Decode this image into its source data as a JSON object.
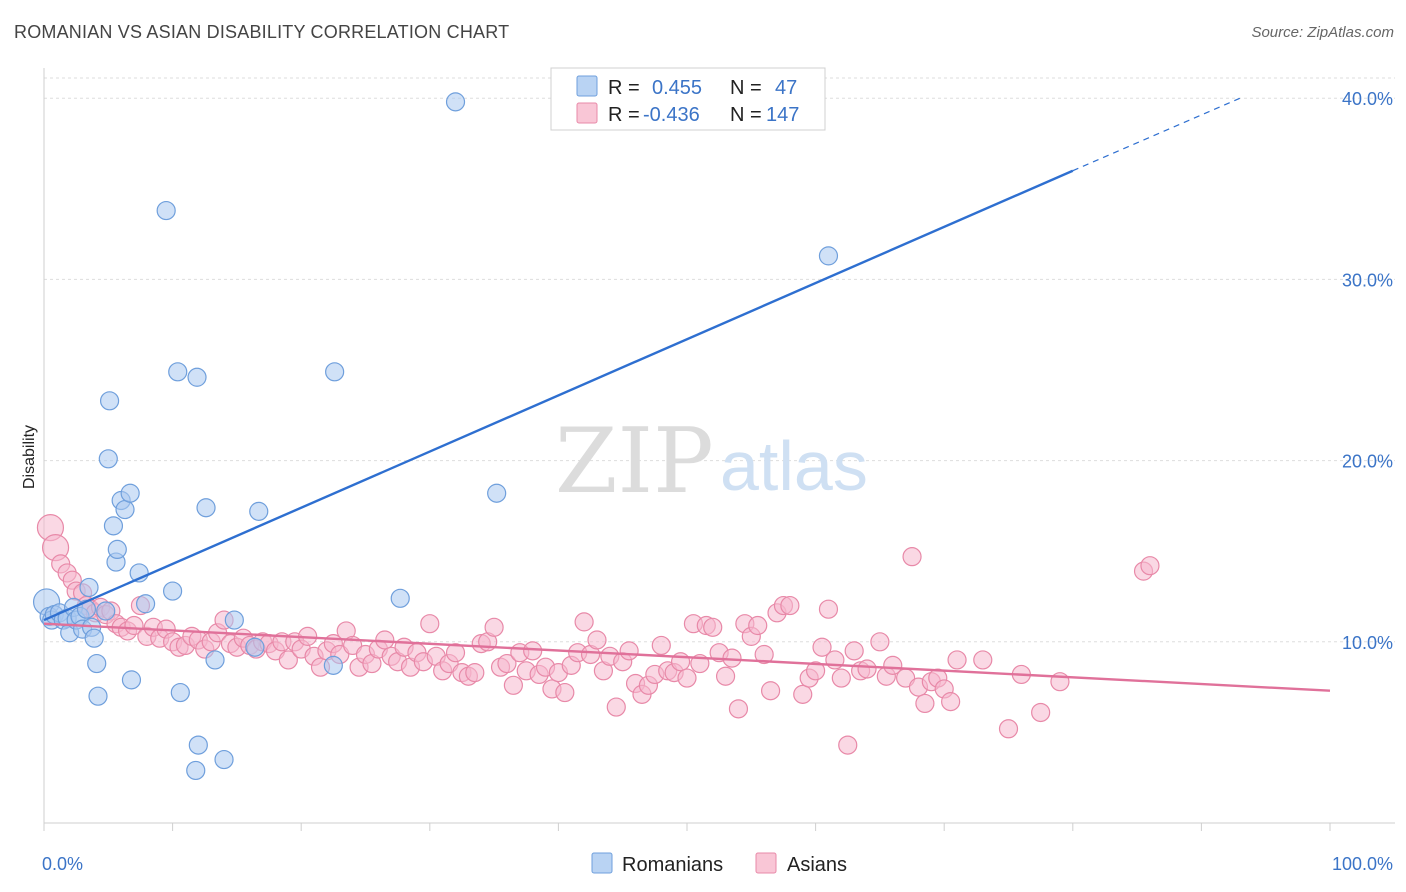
{
  "title": "ROMANIAN VS ASIAN DISABILITY CORRELATION CHART",
  "source": "Source: ZipAtlas.com",
  "watermark": {
    "part1": "ZIP",
    "part2": "atlas"
  },
  "colors": {
    "romanian_fill": "#a9c8f0",
    "romanian_stroke": "#6f9fdc",
    "romanian_line": "#2e6fd0",
    "asian_fill": "#f6b8cd",
    "asian_stroke": "#e889a8",
    "asian_line": "#e0719a",
    "tick_text": "#3b74c7",
    "grid": "#dddddd"
  },
  "legend": {
    "rows": [
      {
        "r_label": "R =",
        "r_value": "0.455",
        "n_label": "N =",
        "n_value": "47"
      },
      {
        "r_label": "R =",
        "r_value": "-0.436",
        "n_label": "N =",
        "n_value": "147"
      }
    ],
    "bottom": [
      "Romanians",
      "Asians"
    ]
  },
  "chart_data": {
    "type": "scatter",
    "title": "ROMANIAN VS ASIAN DISABILITY CORRELATION CHART",
    "ylabel": "Disability",
    "xlabel": "",
    "xlim": [
      0,
      100
    ],
    "ylim": [
      0,
      42
    ],
    "x_tick_labels": [
      "0.0%",
      "100.0%"
    ],
    "y_ticks": [
      10,
      20,
      30,
      40
    ],
    "y_tick_labels": [
      "10.0%",
      "20.0%",
      "30.0%",
      "40.0%"
    ],
    "grid": "horizontal dashed",
    "legend_position": "top-center",
    "series": [
      {
        "name": "Romanians",
        "r": 0.455,
        "n": 47,
        "trend": {
          "x0": 0,
          "y0": 11.2,
          "x1": 80,
          "y1": 36.0,
          "dashed_to": [
            93,
            40.0
          ]
        },
        "points": [
          [
            0.2,
            12.2
          ],
          [
            0.4,
            11.4
          ],
          [
            0.6,
            11.2
          ],
          [
            0.8,
            11.5
          ],
          [
            1.2,
            11.6
          ],
          [
            1.5,
            11.2
          ],
          [
            1.8,
            11.3
          ],
          [
            2.0,
            10.5
          ],
          [
            2.3,
            11.9
          ],
          [
            2.5,
            11.2
          ],
          [
            2.8,
            11.4
          ],
          [
            3.0,
            10.7
          ],
          [
            3.3,
            11.8
          ],
          [
            3.5,
            13.0
          ],
          [
            3.7,
            10.8
          ],
          [
            3.9,
            10.2
          ],
          [
            4.1,
            8.8
          ],
          [
            4.2,
            7.0
          ],
          [
            4.8,
            11.7
          ],
          [
            5.0,
            20.1
          ],
          [
            5.1,
            23.3
          ],
          [
            5.4,
            16.4
          ],
          [
            5.6,
            14.4
          ],
          [
            5.7,
            15.1
          ],
          [
            6.0,
            17.8
          ],
          [
            6.3,
            17.3
          ],
          [
            6.7,
            18.2
          ],
          [
            6.8,
            7.9
          ],
          [
            7.4,
            13.8
          ],
          [
            7.9,
            12.1
          ],
          [
            9.5,
            33.8
          ],
          [
            10.0,
            12.8
          ],
          [
            10.4,
            24.9
          ],
          [
            10.6,
            7.2
          ],
          [
            11.9,
            24.6
          ],
          [
            12.0,
            4.3
          ],
          [
            11.8,
            2.9
          ],
          [
            12.6,
            17.4
          ],
          [
            13.3,
            9.0
          ],
          [
            14.0,
            3.5
          ],
          [
            14.8,
            11.2
          ],
          [
            16.4,
            9.7
          ],
          [
            16.7,
            17.2
          ],
          [
            22.5,
            8.7
          ],
          [
            22.6,
            24.9
          ],
          [
            27.7,
            12.4
          ],
          [
            32.0,
            39.8
          ],
          [
            35.2,
            18.2
          ],
          [
            61.0,
            31.3
          ]
        ]
      },
      {
        "name": "Asians",
        "r": -0.436,
        "n": 147,
        "trend": {
          "x0": 0,
          "y0": 11.0,
          "x1": 100,
          "y1": 7.3
        },
        "points": [
          [
            0.5,
            16.3
          ],
          [
            0.9,
            15.2
          ],
          [
            1.3,
            14.3
          ],
          [
            1.8,
            13.8
          ],
          [
            2.2,
            13.4
          ],
          [
            2.5,
            12.8
          ],
          [
            3.0,
            12.7
          ],
          [
            3.3,
            12.0
          ],
          [
            3.6,
            11.8
          ],
          [
            4.0,
            11.6
          ],
          [
            4.4,
            11.9
          ],
          [
            4.8,
            11.5
          ],
          [
            5.2,
            11.7
          ],
          [
            5.6,
            11.0
          ],
          [
            6.0,
            10.8
          ],
          [
            6.5,
            10.6
          ],
          [
            7.0,
            10.9
          ],
          [
            7.5,
            12.0
          ],
          [
            8.0,
            10.3
          ],
          [
            8.5,
            10.8
          ],
          [
            9.0,
            10.2
          ],
          [
            9.5,
            10.7
          ],
          [
            10.0,
            10.0
          ],
          [
            10.5,
            9.7
          ],
          [
            11.0,
            9.8
          ],
          [
            11.5,
            10.3
          ],
          [
            12.0,
            10.1
          ],
          [
            12.5,
            9.6
          ],
          [
            13.0,
            10.0
          ],
          [
            13.5,
            10.5
          ],
          [
            14.0,
            11.2
          ],
          [
            14.5,
            9.9
          ],
          [
            15.0,
            9.7
          ],
          [
            15.5,
            10.2
          ],
          [
            16.0,
            9.8
          ],
          [
            16.5,
            9.6
          ],
          [
            17.0,
            10.0
          ],
          [
            17.5,
            9.9
          ],
          [
            18.0,
            9.5
          ],
          [
            18.5,
            10.0
          ],
          [
            19.0,
            9.0
          ],
          [
            19.5,
            10.0
          ],
          [
            20.0,
            9.6
          ],
          [
            20.5,
            10.3
          ],
          [
            21.0,
            9.2
          ],
          [
            21.5,
            8.6
          ],
          [
            22.0,
            9.5
          ],
          [
            22.5,
            9.9
          ],
          [
            23.0,
            9.3
          ],
          [
            23.5,
            10.6
          ],
          [
            24.0,
            9.8
          ],
          [
            24.5,
            8.6
          ],
          [
            25.0,
            9.3
          ],
          [
            25.5,
            8.8
          ],
          [
            26.0,
            9.6
          ],
          [
            26.5,
            10.1
          ],
          [
            27.0,
            9.2
          ],
          [
            27.5,
            8.9
          ],
          [
            28.0,
            9.7
          ],
          [
            28.5,
            8.6
          ],
          [
            29.0,
            9.4
          ],
          [
            29.5,
            8.9
          ],
          [
            30.0,
            11.0
          ],
          [
            30.5,
            9.2
          ],
          [
            31.0,
            8.4
          ],
          [
            31.5,
            8.8
          ],
          [
            32.0,
            9.4
          ],
          [
            32.5,
            8.3
          ],
          [
            33.0,
            8.1
          ],
          [
            33.5,
            8.3
          ],
          [
            34.0,
            9.9
          ],
          [
            34.5,
            10.0
          ],
          [
            35.0,
            10.8
          ],
          [
            35.5,
            8.6
          ],
          [
            36.0,
            8.8
          ],
          [
            36.5,
            7.6
          ],
          [
            37.0,
            9.4
          ],
          [
            37.5,
            8.4
          ],
          [
            38.0,
            9.5
          ],
          [
            38.5,
            8.2
          ],
          [
            39.0,
            8.6
          ],
          [
            39.5,
            7.4
          ],
          [
            40.0,
            8.3
          ],
          [
            40.5,
            7.2
          ],
          [
            41.0,
            8.7
          ],
          [
            41.5,
            9.4
          ],
          [
            42.0,
            11.1
          ],
          [
            42.5,
            9.3
          ],
          [
            43.0,
            10.1
          ],
          [
            43.5,
            8.4
          ],
          [
            44.0,
            9.2
          ],
          [
            44.5,
            6.4
          ],
          [
            45.0,
            8.9
          ],
          [
            45.5,
            9.5
          ],
          [
            46.0,
            7.7
          ],
          [
            46.5,
            7.1
          ],
          [
            47.0,
            7.6
          ],
          [
            47.5,
            8.2
          ],
          [
            48.0,
            9.8
          ],
          [
            48.5,
            8.4
          ],
          [
            49.0,
            8.3
          ],
          [
            49.5,
            8.9
          ],
          [
            50.0,
            8.0
          ],
          [
            50.5,
            11.0
          ],
          [
            51.0,
            8.8
          ],
          [
            51.5,
            10.9
          ],
          [
            52.0,
            10.8
          ],
          [
            52.5,
            9.4
          ],
          [
            53.0,
            8.1
          ],
          [
            53.5,
            9.1
          ],
          [
            54.0,
            6.3
          ],
          [
            54.5,
            11.0
          ],
          [
            55.0,
            10.3
          ],
          [
            55.5,
            10.9
          ],
          [
            56.0,
            9.3
          ],
          [
            56.5,
            7.3
          ],
          [
            57.0,
            11.6
          ],
          [
            57.5,
            12.0
          ],
          [
            58.0,
            12.0
          ],
          [
            59.0,
            7.1
          ],
          [
            59.5,
            8.0
          ],
          [
            60.0,
            8.4
          ],
          [
            60.5,
            9.7
          ],
          [
            61.0,
            11.8
          ],
          [
            61.5,
            9.0
          ],
          [
            62.0,
            8.0
          ],
          [
            62.5,
            4.3
          ],
          [
            63.0,
            9.5
          ],
          [
            63.5,
            8.4
          ],
          [
            64.0,
            8.5
          ],
          [
            65.0,
            10.0
          ],
          [
            65.5,
            8.1
          ],
          [
            66.0,
            8.7
          ],
          [
            67.0,
            8.0
          ],
          [
            67.5,
            14.7
          ],
          [
            68.0,
            7.5
          ],
          [
            68.5,
            6.6
          ],
          [
            69.0,
            7.8
          ],
          [
            69.5,
            8.0
          ],
          [
            70.0,
            7.4
          ],
          [
            70.5,
            6.7
          ],
          [
            71.0,
            9.0
          ],
          [
            73.0,
            9.0
          ],
          [
            75.0,
            5.2
          ],
          [
            76.0,
            8.2
          ],
          [
            77.5,
            6.1
          ],
          [
            79.0,
            7.8
          ],
          [
            85.5,
            13.9
          ],
          [
            86.0,
            14.2
          ]
        ]
      }
    ]
  }
}
